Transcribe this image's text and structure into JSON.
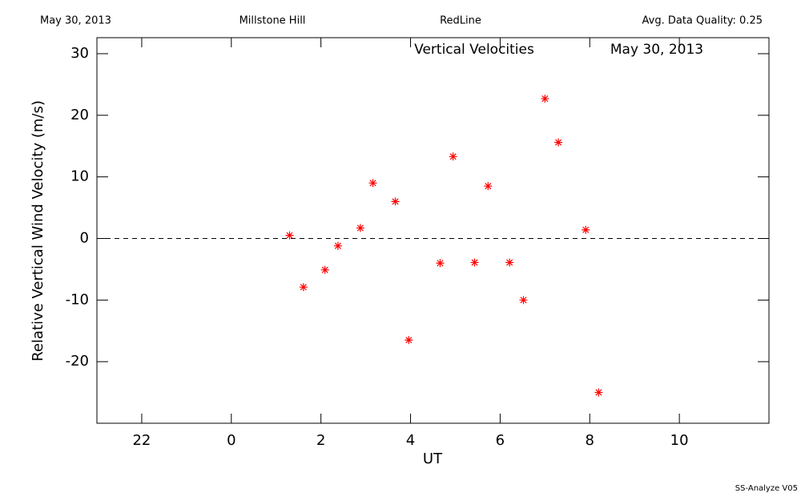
{
  "header": {
    "date": "May 30, 2013",
    "site": "Millstone Hill",
    "filter": "RedLine",
    "quality": "Avg. Data Quality: 0.25"
  },
  "chart_data": {
    "type": "scatter",
    "title": "Vertical Velocities",
    "subtitle": "May 30, 2013",
    "x_label": "UT",
    "y_label": "Relative Vertical Wind Velocity (m/s)",
    "x": [
      1.3,
      1.61,
      2.09,
      2.38,
      2.88,
      3.16,
      3.66,
      3.96,
      4.66,
      4.95,
      5.43,
      5.73,
      6.21,
      6.52,
      7.0,
      7.3,
      7.91,
      8.2
    ],
    "values": [
      0.5,
      -7.9,
      -5.1,
      -1.2,
      1.7,
      9.0,
      6.0,
      -16.5,
      -4.0,
      13.3,
      -3.9,
      8.5,
      -3.9,
      -10.0,
      22.7,
      15.6,
      1.4,
      -25.0
    ],
    "color": "#ff0000",
    "xlim": [
      -3,
      12
    ],
    "xticks": [
      {
        "value": -2,
        "label": "22"
      },
      0,
      2,
      4,
      6,
      8,
      10
    ],
    "ylim": [
      -30,
      32.6
    ],
    "yticks": [
      -20,
      -10,
      0,
      10,
      20,
      30
    ],
    "hline": 0
  },
  "footer": "SS-Analyze V05"
}
